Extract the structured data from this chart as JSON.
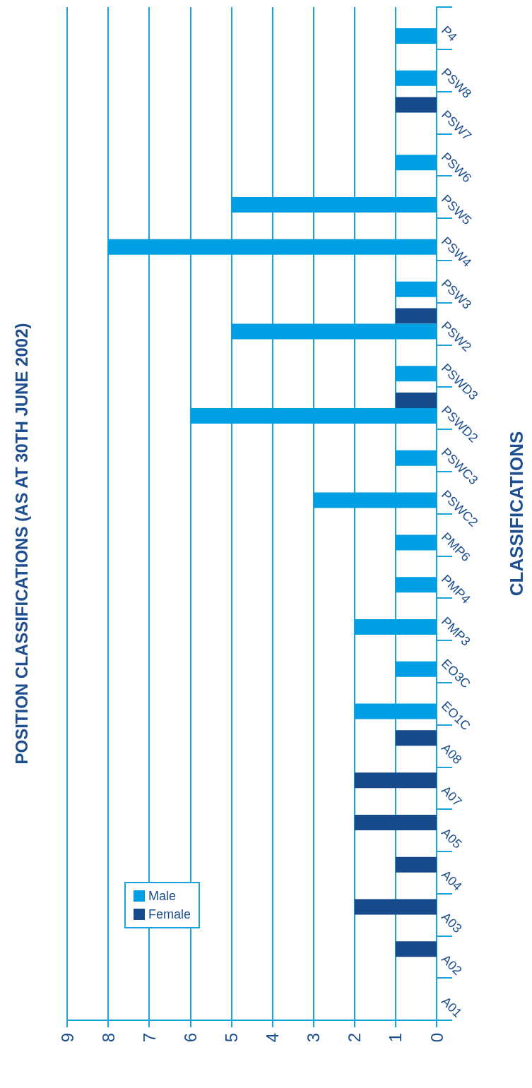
{
  "chart_data": {
    "type": "bar",
    "orientation": "horizontal",
    "title": "POSITION CLASSIFICATIONS (AS AT 30TH JUNE 2002)",
    "ylabel": "CLASSIFICATIONS",
    "categories": [
      "P4",
      "PSW8",
      "PSW7",
      "PSW6",
      "PSW5",
      "PSW4",
      "PSW3",
      "PSW2",
      "PSWD3",
      "PSWD2",
      "PSWC3",
      "PSWC2",
      "PMP6",
      "PMP4",
      "PMP3",
      "EO3C",
      "EO1C",
      "A08",
      "A07",
      "A05",
      "A04",
      "A03",
      "A02",
      "A01"
    ],
    "series": [
      {
        "name": "Male",
        "color": "#009fe3",
        "values": [
          1,
          1,
          0,
          1,
          5,
          8,
          1,
          5,
          1,
          6,
          1,
          3,
          1,
          1,
          2,
          1,
          2,
          0,
          0,
          0,
          0,
          0,
          0,
          0
        ]
      },
      {
        "name": "Female",
        "color": "#164a8a",
        "values": [
          0,
          0,
          1,
          0,
          0,
          0,
          0,
          1,
          0,
          1,
          0,
          0,
          0,
          0,
          0,
          0,
          0,
          1,
          2,
          2,
          1,
          2,
          1,
          0
        ]
      }
    ],
    "xlim": [
      9,
      0
    ],
    "xticks": [
      0,
      1,
      2,
      3,
      4,
      5,
      6,
      7,
      8,
      9
    ],
    "grid": "x",
    "legend": "bottom left"
  }
}
